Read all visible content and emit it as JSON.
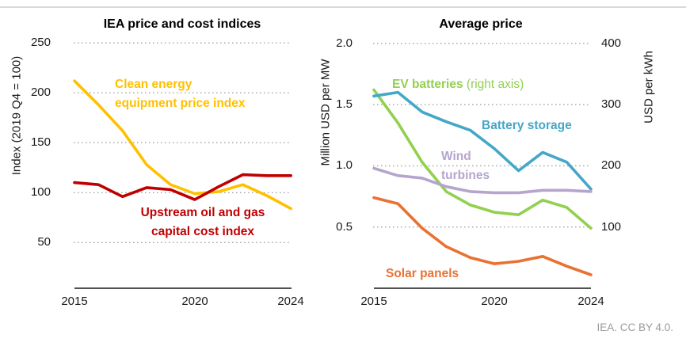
{
  "page": {
    "footer": "IEA. CC BY 4.0."
  },
  "colors": {
    "clean_energy": "#FFC000",
    "upstream_oil_gas": "#C00000",
    "ev_batteries": "#92D050",
    "battery_storage": "#45A7C8",
    "wind_turbines": "#B5A5CE",
    "solar_panels": "#E97132",
    "gridline": "#A6A6A6",
    "axis": "#3A3A3A",
    "top_rule": "#D9D9D9",
    "footer_text": "#9A9A9A"
  },
  "chart_data": [
    {
      "type": "line",
      "title": "IEA price and cost indices",
      "ylabel": "Index (2019 Q4 = 100)",
      "x": [
        2015,
        2016,
        2017,
        2018,
        2019,
        2020,
        2021,
        2022,
        2023,
        2024
      ],
      "xtick_labels": [
        "2015",
        "2020",
        "2024"
      ],
      "ytick_labels": [
        "250",
        "200",
        "150",
        "100",
        "50"
      ],
      "yticks": [
        250,
        200,
        150,
        100,
        50
      ],
      "ylim": [
        0,
        260
      ],
      "grid": "horizontal-dotted",
      "series": [
        {
          "name": "Clean energy equipment price index",
          "color": "#FFC000",
          "values": [
            212,
            188,
            162,
            128,
            108,
            99,
            101,
            108,
            97,
            84
          ],
          "legend": {
            "line1": "Clean energy",
            "line2": "equipment price index"
          }
        },
        {
          "name": "Upstream oil and gas capital cost index",
          "color": "#C00000",
          "values": [
            110,
            108,
            96,
            105,
            103,
            93,
            106,
            118,
            117,
            117
          ],
          "legend": {
            "line1": "Upstream oil and gas",
            "line2": "capital cost index"
          }
        }
      ]
    },
    {
      "type": "line",
      "title": "Average price",
      "ylabel_left": "Million USD per MW",
      "ylabel_right": "USD per kWh",
      "x": [
        2015,
        2016,
        2017,
        2018,
        2019,
        2020,
        2021,
        2022,
        2023,
        2024
      ],
      "xtick_labels": [
        "2015",
        "2020",
        "2024"
      ],
      "ytick_labels_left": [
        "2.0",
        "1.5",
        "1.0",
        "0.5"
      ],
      "ytick_labels_right": [
        "400",
        "300",
        "200",
        "100"
      ],
      "yticks_left": [
        2.0,
        1.5,
        1.0,
        0.5
      ],
      "yticks_right": [
        400,
        300,
        200,
        100
      ],
      "ylim_left": [
        0,
        2.0
      ],
      "ylim_right": [
        0,
        400
      ],
      "grid": "horizontal-dotted",
      "series": [
        {
          "name": "EV batteries (right axis)",
          "axis": "right",
          "unit": "USD per kWh",
          "color": "#92D050",
          "values": [
            324,
            270,
            206,
            158,
            136,
            124,
            120,
            144,
            132,
            98
          ],
          "legend": {
            "bold": "EV batteries",
            "rest": " (right axis)"
          }
        },
        {
          "name": "Battery storage",
          "axis": "left",
          "unit": "Million USD per MW",
          "color": "#45A7C8",
          "values": [
            1.57,
            1.6,
            1.44,
            1.36,
            1.29,
            1.14,
            0.96,
            1.11,
            1.03,
            0.81
          ],
          "legend": {
            "line1": "Battery storage"
          }
        },
        {
          "name": "Wind turbines",
          "axis": "left",
          "unit": "Million USD per MW",
          "color": "#B5A5CE",
          "values": [
            0.98,
            0.92,
            0.9,
            0.83,
            0.79,
            0.78,
            0.78,
            0.8,
            0.8,
            0.79
          ],
          "legend": {
            "line1": "Wind",
            "line2": "turbines"
          }
        },
        {
          "name": "Solar panels",
          "axis": "left",
          "unit": "Million USD per MW",
          "color": "#E97132",
          "values": [
            0.74,
            0.69,
            0.49,
            0.34,
            0.25,
            0.2,
            0.22,
            0.26,
            0.18,
            0.11
          ],
          "legend": {
            "line1": "Solar panels"
          }
        }
      ]
    }
  ]
}
